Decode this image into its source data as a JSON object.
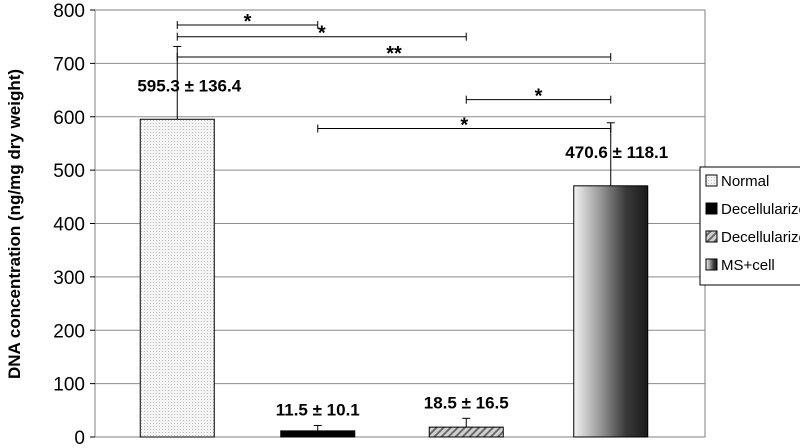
{
  "chart_data": {
    "type": "bar",
    "title": "",
    "xlabel": "",
    "ylabel": "DNA concentration (ng/mg dry weight)",
    "ylim": [
      0,
      800
    ],
    "yticks": [
      0,
      100,
      200,
      300,
      400,
      500,
      600,
      700,
      800
    ],
    "grid": true,
    "legend_position": "right",
    "series": [
      {
        "name": "Normal",
        "value": 595.3,
        "error": 136.4,
        "label": "595.3 ± 136.4",
        "fill": "dots-light"
      },
      {
        "name": "Decellularized",
        "value": 11.5,
        "error": 10.1,
        "label": "11.5 ± 10.1",
        "fill": "black"
      },
      {
        "name": "Decellularized+cell",
        "value": 18.5,
        "error": 16.5,
        "label": "18.5 ± 16.5",
        "fill": "hatch"
      },
      {
        "name": "MS+cell",
        "value": 470.6,
        "error": 118.1,
        "label": "470.6 ± 118.1",
        "fill": "gradient"
      }
    ],
    "significance": [
      {
        "from": 0,
        "to": 1,
        "level": 772,
        "label": "*"
      },
      {
        "from": 0,
        "to": 2,
        "level": 750,
        "label": "*"
      },
      {
        "from": 0,
        "to": 3,
        "level": 712,
        "label": "**"
      },
      {
        "from": 2,
        "to": 3,
        "level": 632,
        "label": "*"
      },
      {
        "from": 1,
        "to": 3,
        "level": 578,
        "label": "*"
      }
    ]
  }
}
